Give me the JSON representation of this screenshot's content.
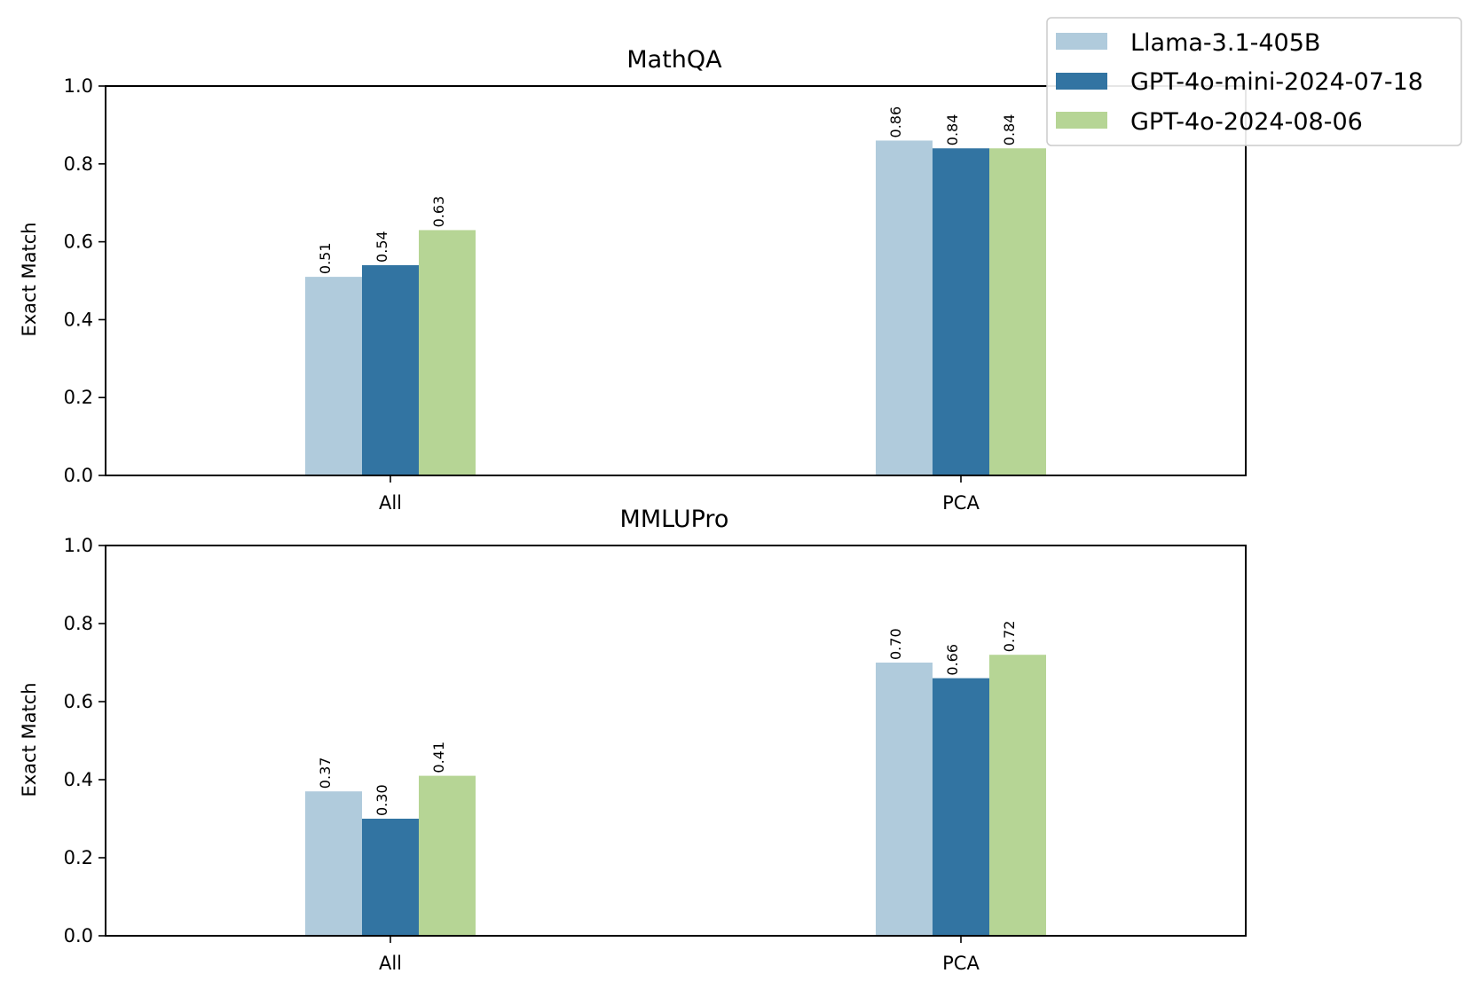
{
  "legend": [
    {
      "label": "Llama-3.1-405B",
      "color": "#b0cbdc"
    },
    {
      "label": "GPT-4o-mini-2024-07-18",
      "color": "#3274a2"
    },
    {
      "label": "GPT-4o-2024-08-06",
      "color": "#b6d595"
    }
  ],
  "chart_data": [
    {
      "type": "bar",
      "title": "MathQA",
      "xlabel": "",
      "ylabel": "Exact Match",
      "ylim": [
        0,
        1.0
      ],
      "yticks": [
        "0.0",
        "0.2",
        "0.4",
        "0.6",
        "0.8",
        "1.0"
      ],
      "categories": [
        "All",
        "PCA"
      ],
      "series": [
        {
          "name": "Llama-3.1-405B",
          "values": [
            0.51,
            0.86
          ],
          "labels": [
            "0.51",
            "0.86"
          ]
        },
        {
          "name": "GPT-4o-mini-2024-07-18",
          "values": [
            0.54,
            0.84
          ],
          "labels": [
            "0.54",
            "0.84"
          ]
        },
        {
          "name": "GPT-4o-2024-08-06",
          "values": [
            0.63,
            0.84
          ],
          "labels": [
            "0.63",
            "0.84"
          ]
        }
      ]
    },
    {
      "type": "bar",
      "title": "MMLUPro",
      "xlabel": "",
      "ylabel": "Exact Match",
      "ylim": [
        0,
        1.0
      ],
      "yticks": [
        "0.0",
        "0.2",
        "0.4",
        "0.6",
        "0.8",
        "1.0"
      ],
      "categories": [
        "All",
        "PCA"
      ],
      "series": [
        {
          "name": "Llama-3.1-405B",
          "values": [
            0.37,
            0.7
          ],
          "labels": [
            "0.37",
            "0.70"
          ]
        },
        {
          "name": "GPT-4o-mini-2024-07-18",
          "values": [
            0.3,
            0.66
          ],
          "labels": [
            "0.30",
            "0.66"
          ]
        },
        {
          "name": "GPT-4o-2024-08-06",
          "values": [
            0.41,
            0.72
          ],
          "labels": [
            "0.41",
            "0.72"
          ]
        }
      ]
    }
  ]
}
